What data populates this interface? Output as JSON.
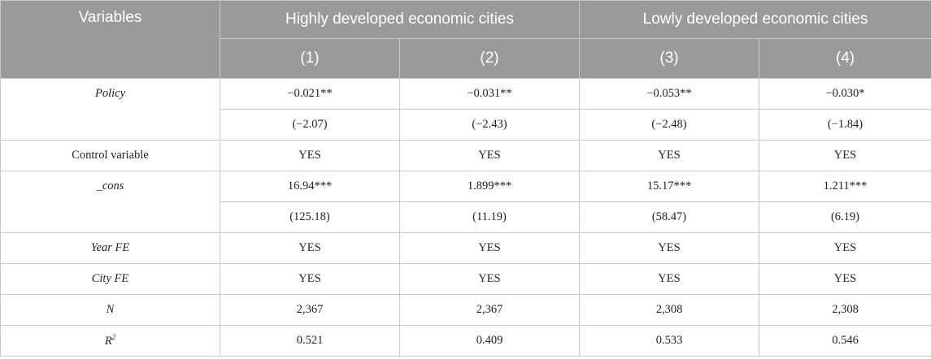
{
  "header": {
    "variables_label": "Variables",
    "group_high": "Highly developed economic cities",
    "group_low": "Lowly developed economic cities",
    "columns": [
      "(1)",
      "(2)",
      "(3)",
      "(4)"
    ]
  },
  "rows": {
    "policy": {
      "label": "Policy",
      "coef": [
        "−0.021**",
        "−0.031**",
        "−0.053**",
        "−0.030*"
      ],
      "t": [
        "(−2.07)",
        "(−2.43)",
        "(−2.48)",
        "(−1.84)"
      ]
    },
    "control": {
      "label": "Control variable",
      "values": [
        "YES",
        "YES",
        "YES",
        "YES"
      ]
    },
    "cons": {
      "label": "_cons",
      "coef": [
        "16.94***",
        "1.899***",
        "15.17***",
        "1.211***"
      ],
      "t": [
        "(125.18)",
        "(11.19)",
        "(58.47)",
        "(6.19)"
      ]
    },
    "year_fe": {
      "label": "Year FE",
      "values": [
        "YES",
        "YES",
        "YES",
        "YES"
      ]
    },
    "city_fe": {
      "label": "City FE",
      "values": [
        "YES",
        "YES",
        "YES",
        "YES"
      ]
    },
    "n": {
      "label": "N",
      "values": [
        "2,367",
        "2,367",
        "2,308",
        "2,308"
      ]
    },
    "r2": {
      "label": "R",
      "label_sup": "2",
      "values": [
        "0.521",
        "0.409",
        "0.533",
        "0.546"
      ]
    }
  }
}
